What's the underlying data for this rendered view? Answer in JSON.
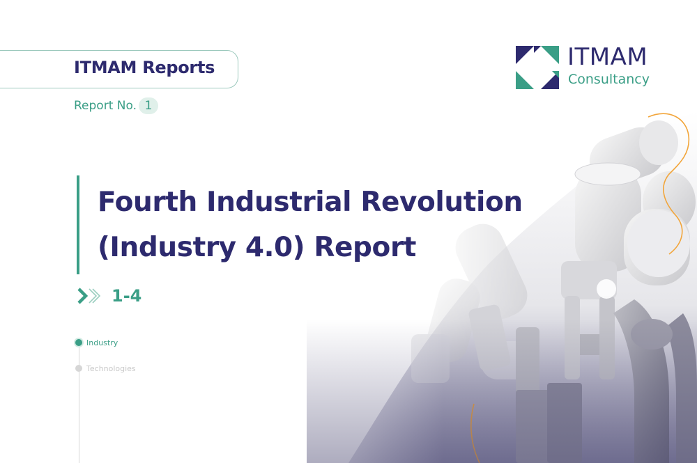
{
  "series": {
    "title": "ITMAM Reports",
    "report_label": "Report No.",
    "report_number": "1"
  },
  "logo": {
    "name": "ITMAM",
    "subtitle": "Consultancy"
  },
  "report": {
    "title_line1": "Fourth Industrial Revolution",
    "title_line2": "(Industry 4.0) Report",
    "range": "1-4"
  },
  "timeline": [
    {
      "label": "Industry",
      "active": true
    },
    {
      "label": "Technologies",
      "active": false
    }
  ],
  "hero": {
    "icon": "industrial-robot-arms-image"
  },
  "colors": {
    "navy": "#2d2a6e",
    "teal": "#3a9e86",
    "orange": "#f2a53a"
  }
}
